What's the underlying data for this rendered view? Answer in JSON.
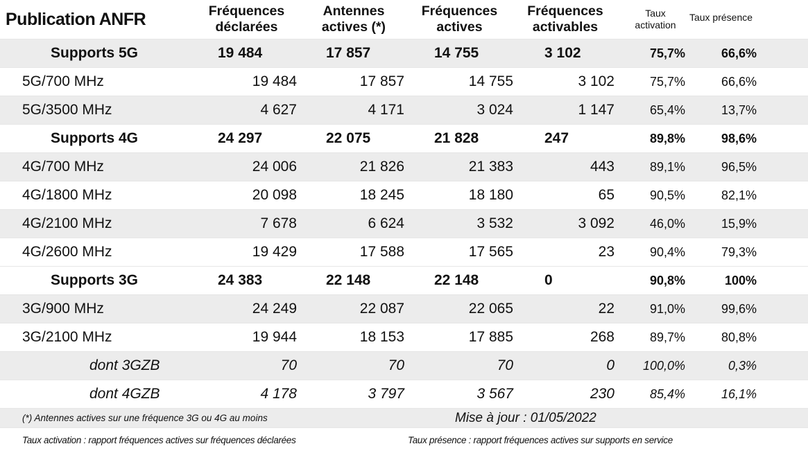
{
  "header": {
    "title": "Publication ANFR",
    "col1": [
      "Fréquences",
      "déclarées"
    ],
    "col2": [
      "Antennes",
      "actives (*)"
    ],
    "col3": [
      "Fréquences",
      "actives"
    ],
    "col4": [
      "Fréquences",
      "activables"
    ],
    "col5": [
      "Taux",
      "activation"
    ],
    "col6": "Taux présence"
  },
  "rows": [
    {
      "label": "Supports 5G",
      "v": [
        "19 484",
        "17 857",
        "14 755",
        "3 102",
        "75,7%",
        "66,6%"
      ]
    },
    {
      "label": "5G/700 MHz",
      "v": [
        "19 484",
        "17 857",
        "14 755",
        "3 102",
        "75,7%",
        "66,6%"
      ]
    },
    {
      "label": "5G/3500 MHz",
      "v": [
        "4 627",
        "4 171",
        "3 024",
        "1 147",
        "65,4%",
        "13,7%"
      ]
    },
    {
      "label": "Supports 4G",
      "v": [
        "24 297",
        "22 075",
        "21 828",
        "247",
        "89,8%",
        "98,6%"
      ]
    },
    {
      "label": "4G/700 MHz",
      "v": [
        "24 006",
        "21 826",
        "21 383",
        "443",
        "89,1%",
        "96,5%"
      ]
    },
    {
      "label": "4G/1800 MHz",
      "v": [
        "20 098",
        "18 245",
        "18 180",
        "65",
        "90,5%",
        "82,1%"
      ]
    },
    {
      "label": "4G/2100 MHz",
      "v": [
        "7 678",
        "6 624",
        "3 532",
        "3 092",
        "46,0%",
        "15,9%"
      ]
    },
    {
      "label": "4G/2600 MHz",
      "v": [
        "19 429",
        "17 588",
        "17 565",
        "23",
        "90,4%",
        "79,3%"
      ]
    },
    {
      "label": "Supports 3G",
      "v": [
        "24 383",
        "22 148",
        "22 148",
        "0",
        "90,8%",
        "100%"
      ]
    },
    {
      "label": "3G/900 MHz",
      "v": [
        "24 249",
        "22 087",
        "22 065",
        "22",
        "91,0%",
        "99,6%"
      ]
    },
    {
      "label": "3G/2100 MHz",
      "v": [
        "19 944",
        "18 153",
        "17 885",
        "268",
        "89,7%",
        "80,8%"
      ]
    },
    {
      "label": "dont 3GZB",
      "v": [
        "70",
        "70",
        "70",
        "0",
        "100,0%",
        "0,3%"
      ]
    },
    {
      "label": "dont 4GZB",
      "v": [
        "4 178",
        "3 797",
        "3 567",
        "230",
        "85,4%",
        "16,1%"
      ]
    }
  ],
  "footer": {
    "note": "(*) Antennes actives sur une fréquence 3G ou 4G au moins",
    "update": "Mise à jour : 01/05/2022",
    "def_activation": "Taux activation : rapport fréquences actives sur fréquences déclarées",
    "def_presence": "Taux présence : rapport fréquences actives sur supports en service"
  }
}
